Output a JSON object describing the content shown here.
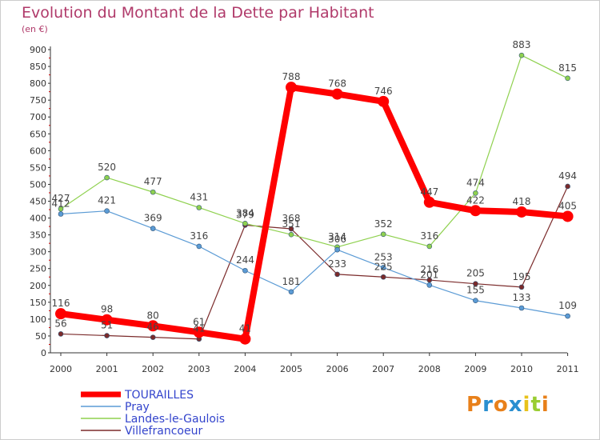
{
  "header": {
    "title": "Evolution du Montant de la Dette par Habitant",
    "unit": "(en €)"
  },
  "logo": {
    "letters": [
      "P",
      "r",
      "o",
      "x",
      "i",
      "t",
      "i"
    ],
    "colors": [
      "#e8801a",
      "#2a8fd0",
      "#e8801a",
      "#2a8fd0",
      "#e8c21a",
      "#9acd32",
      "#e8801a"
    ]
  },
  "chart_data": {
    "type": "line",
    "title": "Evolution du Montant de la Dette par Habitant",
    "subtitle": "(en €)",
    "xlabel": "",
    "ylabel": "",
    "x": [
      "2000",
      "2001",
      "2002",
      "2003",
      "2004",
      "2005",
      "2006",
      "2007",
      "2008",
      "2009",
      "2010",
      "2011"
    ],
    "ylim": [
      0,
      900
    ],
    "yticks": [
      0,
      50,
      100,
      150,
      200,
      250,
      300,
      350,
      400,
      450,
      500,
      550,
      600,
      650,
      700,
      750,
      800,
      850,
      900
    ],
    "grid": false,
    "legend_position": "bottom-left",
    "series": [
      {
        "name": "TOURAILLES",
        "color": "#ff0000",
        "values": [
          116,
          98,
          80,
          61,
          41,
          788,
          768,
          746,
          447,
          422,
          418,
          405
        ],
        "labels": [
          "116",
          "98",
          "80",
          "61",
          "41",
          "788",
          "768",
          "746",
          "447",
          "422",
          "418",
          "405"
        ]
      },
      {
        "name": "Pray",
        "color": "#5b9bd5",
        "values": [
          412,
          421,
          369,
          316,
          244,
          181,
          306,
          253,
          201,
          155,
          133,
          109
        ],
        "labels": [
          "412",
          "421",
          "369",
          "316",
          "244",
          "181",
          "306",
          "253",
          "201",
          "155",
          "133",
          "109"
        ]
      },
      {
        "name": "Landes-le-Gaulois",
        "color": "#8fd14f",
        "values": [
          427,
          520,
          477,
          431,
          384,
          351,
          314,
          352,
          316,
          474,
          883,
          815
        ],
        "labels": [
          "427",
          "520",
          "477",
          "431",
          "384",
          "351",
          "314",
          "352",
          "316",
          "474",
          "883",
          "815"
        ]
      },
      {
        "name": "Villefrancoeur",
        "color": "#7b2b2b",
        "values": [
          56,
          51,
          46,
          41,
          379,
          368,
          233,
          225,
          216,
          205,
          195,
          494
        ],
        "labels": [
          "56",
          "51",
          "46",
          "41",
          "379",
          "368",
          "233",
          "225",
          "216",
          "205",
          "195",
          "494"
        ]
      }
    ]
  }
}
